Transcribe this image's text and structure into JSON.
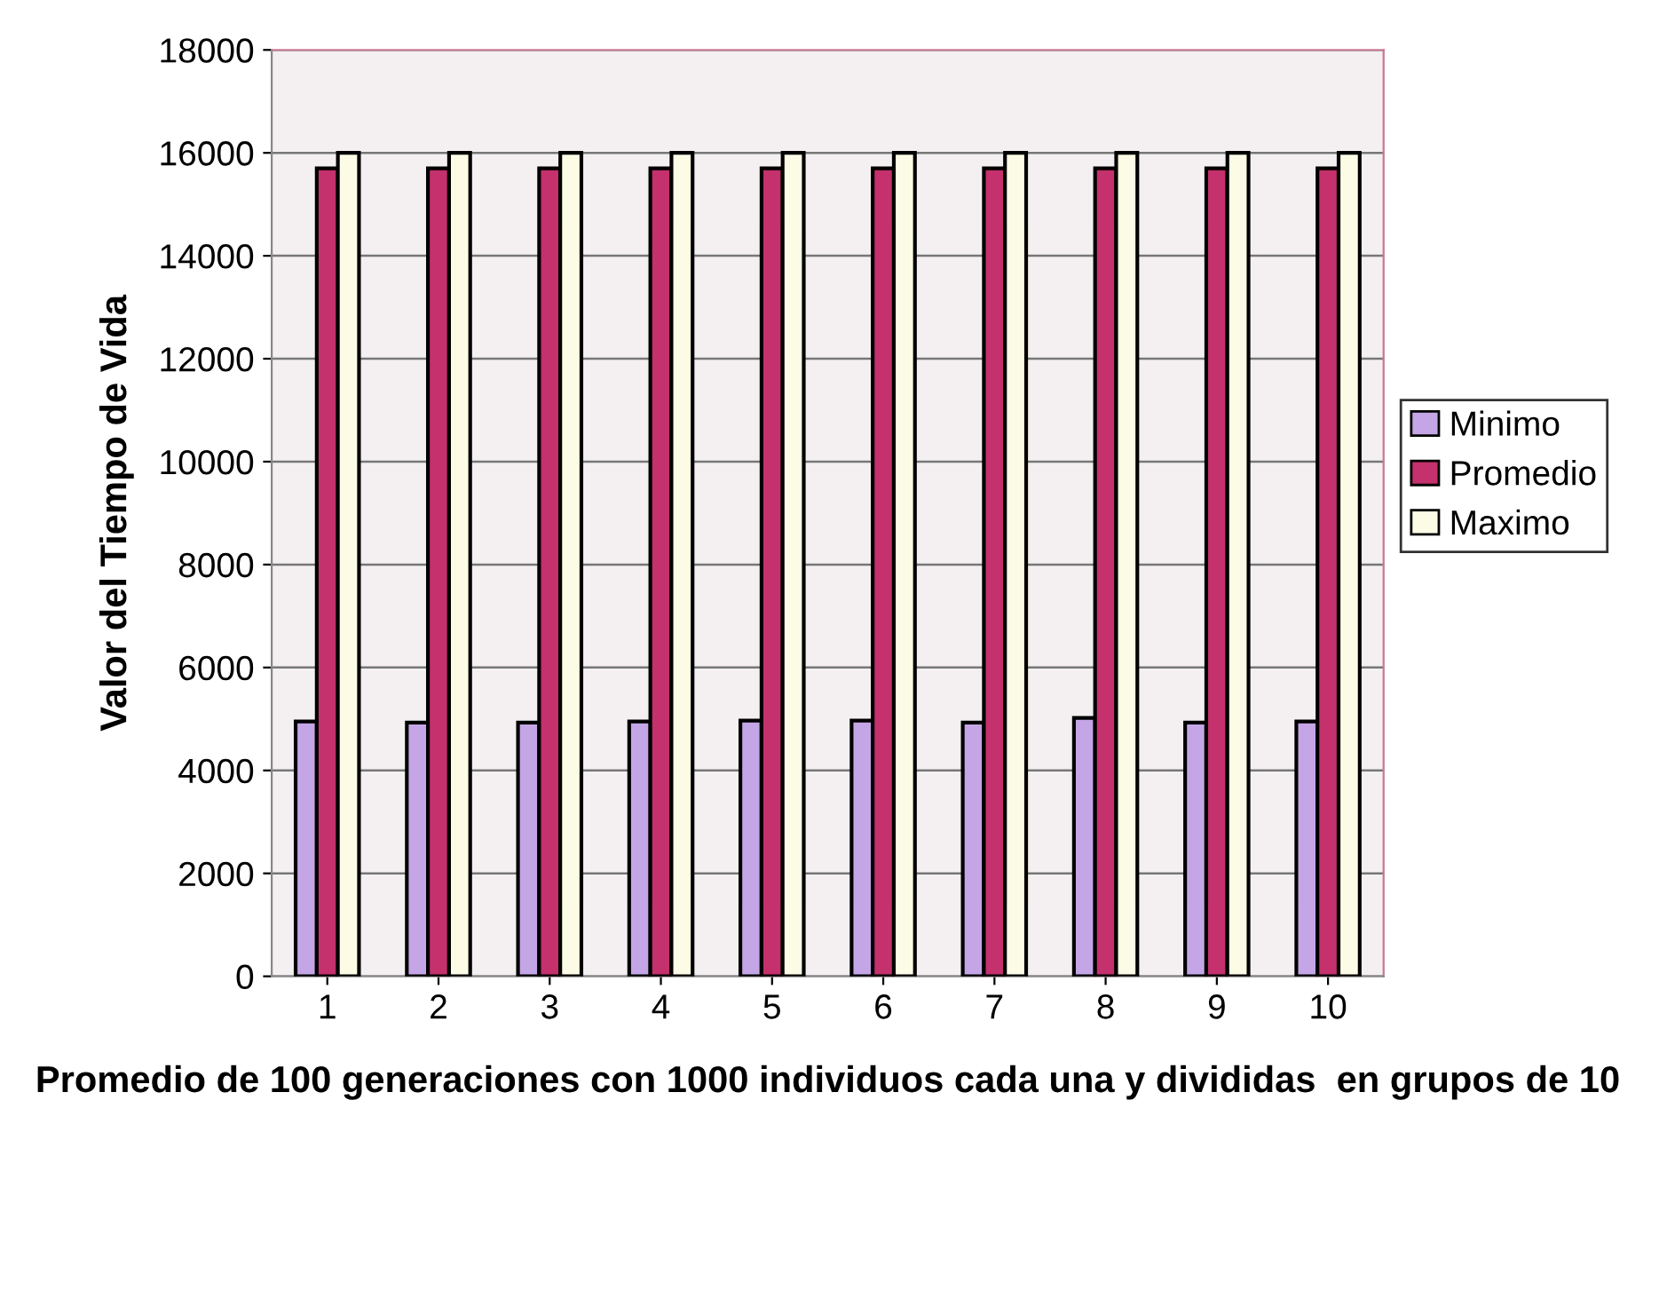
{
  "chart_data": {
    "type": "bar",
    "xlabel": "Promedio de 100 generaciones con 1000 individuos cada una y divididas  en grupos de 10",
    "ylabel": "Valor del Tiempo de Vida",
    "categories": [
      "1",
      "2",
      "3",
      "4",
      "5",
      "6",
      "7",
      "8",
      "9",
      "10"
    ],
    "series": [
      {
        "name": "Minimo",
        "color": "#c4a6e6",
        "values": [
          4950,
          4930,
          4930,
          4950,
          4970,
          4970,
          4930,
          5020,
          4930,
          4950
        ]
      },
      {
        "name": "Promedio",
        "color": "#c4316c",
        "values": [
          15700,
          15700,
          15700,
          15700,
          15700,
          15700,
          15700,
          15700,
          15700,
          15700
        ]
      },
      {
        "name": "Maximo",
        "color": "#fcfce6",
        "values": [
          16000,
          16000,
          16000,
          16000,
          16000,
          16000,
          16000,
          16000,
          16000,
          16000
        ]
      }
    ],
    "ylim": [
      0,
      18000
    ],
    "yticks": [
      0,
      2000,
      4000,
      6000,
      8000,
      10000,
      12000,
      14000,
      16000,
      18000
    ],
    "grid": "y",
    "legend": "right"
  }
}
